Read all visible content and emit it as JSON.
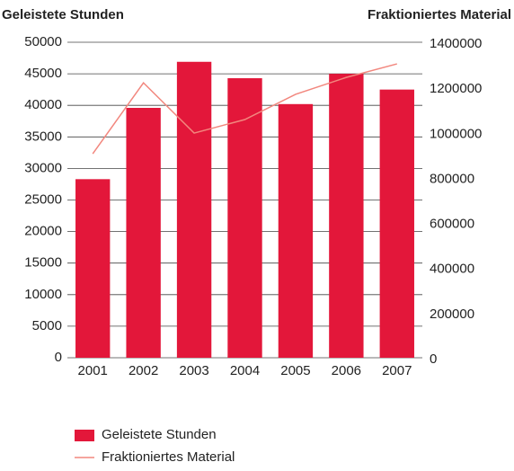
{
  "chart_data": {
    "type": "bar",
    "y_label": "Geleistete Stunden",
    "y2_label": "Fraktioniertes Material",
    "categories": [
      "2001",
      "2002",
      "2003",
      "2004",
      "2005",
      "2006",
      "2007"
    ],
    "series": [
      {
        "name": "Geleistete Stunden",
        "type": "bar",
        "color": "#e3173a",
        "values": [
          28300,
          39600,
          46900,
          44300,
          40200,
          45000,
          42500
        ]
      },
      {
        "name": "Fraktioniertes Material",
        "type": "line",
        "axis": "y2",
        "color": "#f2877e",
        "values": [
          905000,
          1220000,
          997000,
          1057000,
          1169000,
          1244000,
          1304000
        ]
      }
    ],
    "ylim": [
      0,
      50000
    ],
    "yticks": [
      0,
      5000,
      10000,
      15000,
      20000,
      25000,
      30000,
      35000,
      40000,
      45000,
      50000
    ],
    "y2lim": [
      0,
      1400000
    ],
    "y2ticks": [
      0,
      200000,
      400000,
      600000,
      800000,
      1000000,
      1200000,
      1400000
    ],
    "grid": true,
    "legend": "bottom-left"
  }
}
